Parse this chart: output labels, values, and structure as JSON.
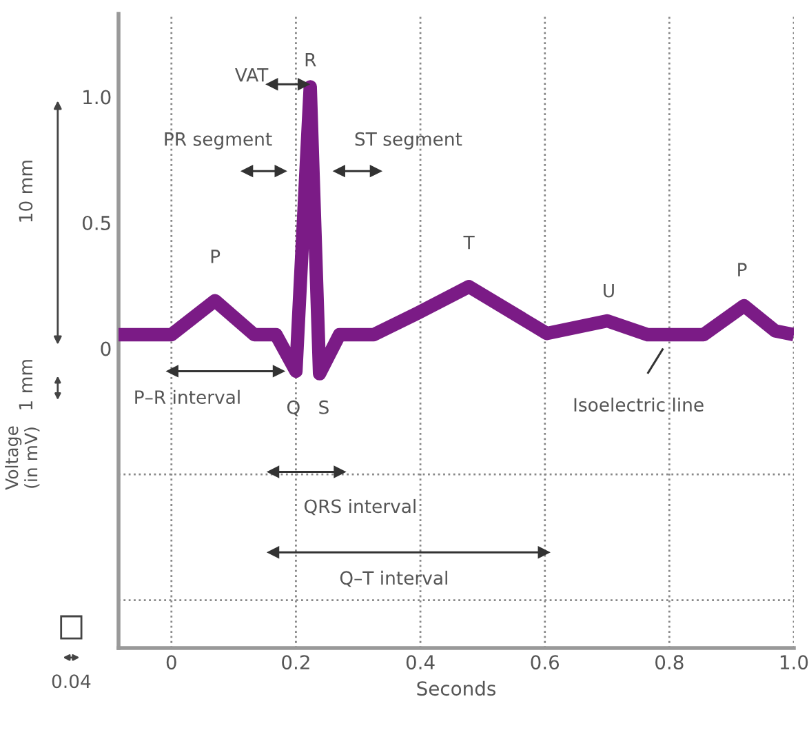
{
  "chart_data": {
    "type": "line",
    "xlabel": "Seconds",
    "ylabel": "Voltage\n(in mV)",
    "xlim": [
      -0.085,
      1.0
    ],
    "ylim": [
      -1.19,
      1.33
    ],
    "xticks": [
      0,
      0.2,
      0.4,
      0.6,
      0.8,
      {
        "value": 1.0,
        "label": "1.0"
      }
    ],
    "yticks": [
      0,
      0.5,
      {
        "value": 1.0,
        "label": "1.0"
      }
    ],
    "grid": "x",
    "legend": false,
    "line_style": "solid",
    "series": [
      {
        "color": "#7b1b86",
        "x": [
          -0.085,
          0.0,
          0.07,
          0.133,
          0.168,
          0.2,
          0.223,
          0.238,
          0.27,
          0.325,
          0.395,
          0.478,
          0.603,
          0.7,
          0.765,
          0.855,
          0.92,
          0.97,
          1.0
        ],
        "values": [
          0.055,
          0.055,
          0.19,
          0.055,
          0.055,
          -0.09,
          1.04,
          -0.1,
          0.055,
          0.055,
          0.14,
          0.246,
          0.06,
          0.11,
          0.055,
          0.055,
          0.17,
          0.07,
          0.055
        ]
      },
      {
        "color": "#333333",
        "marker": "triangle",
        "x": [
          0.162,
          0.212
        ],
        "values": [
          1.05,
          1.05
        ]
      },
      {
        "color": "#333333",
        "marker": "triangle",
        "x": [
          0.122,
          0.175
        ],
        "values": [
          0.705,
          0.705
        ]
      },
      {
        "color": "#333333",
        "marker": "triangle",
        "x": [
          0.27,
          0.328
        ],
        "values": [
          0.705,
          0.705
        ]
      },
      {
        "color": "#333333",
        "marker": "triangle",
        "x": [
          0.002,
          0.172
        ],
        "values": [
          -0.09,
          -0.09
        ]
      },
      {
        "color": "#333333",
        "marker": "triangle",
        "x": [
          0.164,
          0.27
        ],
        "values": [
          -0.49,
          -0.49
        ]
      },
      {
        "color": "#333333",
        "marker": "triangle",
        "x": [
          0.164,
          0.598
        ],
        "values": [
          -0.81,
          -0.81
        ]
      },
      {
        "color": "#333333",
        "marker": "none",
        "x": [
          0.765,
          0.79
        ],
        "values": [
          -0.1,
          0.0
        ]
      }
    ],
    "ref_lines": [
      {
        "axis": "y",
        "value": -0.5,
        "color": "#888888",
        "line_style": "dotted"
      },
      {
        "axis": "y",
        "value": -1.0,
        "color": "#888888",
        "line_style": "dotted"
      }
    ],
    "annotations": [
      "VAT",
      "R",
      "PR segment",
      "ST segment",
      "P",
      "T",
      "U",
      "P",
      "P–R interval",
      "Q",
      "S",
      "Isoelectric line",
      "QRS interval",
      "Q–T interval",
      "10 mm",
      "1 mm",
      "0.04"
    ]
  }
}
